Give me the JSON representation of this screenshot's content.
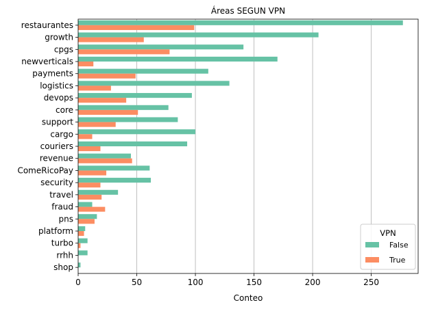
{
  "chart_data": {
    "type": "bar",
    "orientation": "horizontal",
    "title": "Áreas SEGUN VPN",
    "xlabel": "Conteo",
    "ylabel": "",
    "xlim": [
      0,
      290
    ],
    "xticks": [
      0,
      50,
      100,
      150,
      200,
      250
    ],
    "grid": "vertical",
    "legend": {
      "title": "VPN",
      "placement": "bottom-right"
    },
    "categories": [
      "restaurantes",
      "growth",
      "cpgs",
      "newverticals",
      "payments",
      "logistics",
      "devops",
      "core",
      "support",
      "cargo",
      "couriers",
      "revenue",
      "ComeRicoPay",
      "security",
      "travel",
      "fraud",
      "pns",
      "platform",
      "turbo",
      "rrhh",
      "shop"
    ],
    "series": [
      {
        "name": "False",
        "color": "#66c2a5",
        "values": [
          277,
          205,
          141,
          170,
          111,
          129,
          97,
          77,
          85,
          100,
          93,
          45,
          61,
          62,
          34,
          12,
          16,
          6,
          8,
          8,
          2
        ]
      },
      {
        "name": "True",
        "color": "#fc8d62",
        "values": [
          99,
          56,
          78,
          13,
          49,
          28,
          41,
          51,
          32,
          12,
          19,
          46,
          24,
          19,
          20,
          23,
          14,
          5,
          2,
          0,
          0
        ]
      }
    ]
  }
}
